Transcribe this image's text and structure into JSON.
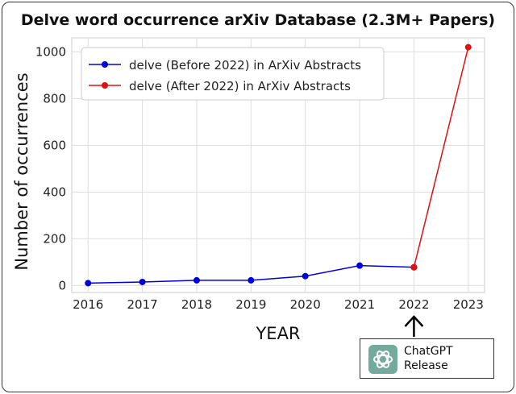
{
  "title": "Delve word occurrence arXiv Database (2.3M+ Papers)",
  "annotation": {
    "line1": "ChatGPT",
    "line2": "Release",
    "icon": "chatgpt-logo-icon",
    "icon_color": "#74aa9c",
    "arrow_year": 2022
  },
  "chart_data": {
    "type": "line",
    "xlabel": "YEAR",
    "ylabel": "Number of occurrences",
    "xlim": [
      2015.7,
      2023.3
    ],
    "ylim": [
      -30,
      1060
    ],
    "x_ticks": [
      2016,
      2017,
      2018,
      2019,
      2020,
      2021,
      2022,
      2023
    ],
    "y_ticks": [
      0,
      200,
      400,
      600,
      800,
      1000
    ],
    "grid": true,
    "legend_position": "upper-left",
    "series": [
      {
        "name": "delve (Before 2022) in ArXiv Abstracts",
        "color": "#0000dd",
        "x": [
          2016,
          2017,
          2018,
          2019,
          2020,
          2021,
          2022
        ],
        "y": [
          10,
          15,
          22,
          22,
          40,
          85,
          78
        ]
      },
      {
        "name": "delve (After 2022) in ArXiv Abstracts",
        "color": "#e01010",
        "x": [
          2022,
          2023
        ],
        "y": [
          78,
          1020
        ]
      }
    ]
  }
}
